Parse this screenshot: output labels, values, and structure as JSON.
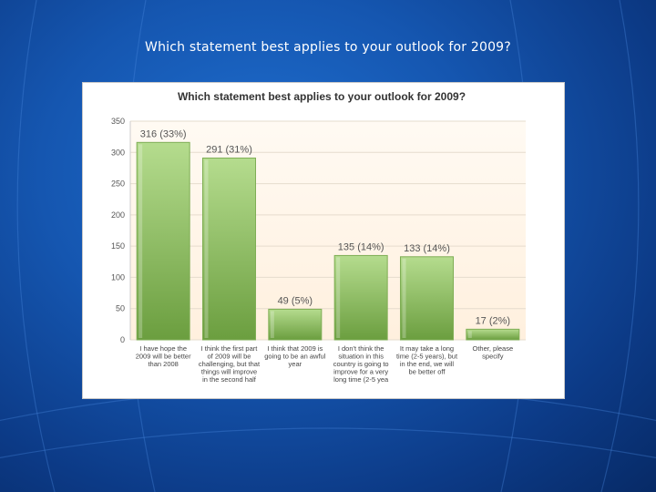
{
  "slide": {
    "title": "Which statement best applies to your outlook for 2009?"
  },
  "colors": {
    "background": "#1556b0",
    "bar_top": "#b5dc8e",
    "bar_bottom": "#6b9e3f",
    "plot_bg": "#fff6ea"
  },
  "chart_data": {
    "type": "bar",
    "title": "Which statement best applies to your outlook for 2009?",
    "xlabel": "",
    "ylabel": "",
    "ylim": [
      0,
      350
    ],
    "yticks": [
      0,
      50,
      100,
      150,
      200,
      250,
      300,
      350
    ],
    "grid": true,
    "legend": "none",
    "categories": [
      [
        "I have hope the",
        "2009 will be better",
        "than 2008"
      ],
      [
        "I think the first part",
        "of 2009 will be",
        "challenging, but that",
        "things will improve",
        "in the second half"
      ],
      [
        "I think that 2009 is",
        "going to be an awful",
        "year"
      ],
      [
        "I don't think the",
        "situation in this",
        "country is going to",
        "improve for a very",
        "long time (2-5 yea"
      ],
      [
        "It may take a long",
        "time (2-5 years), but",
        "in the end, we will",
        "be better off"
      ],
      [
        "Other, please",
        "specify"
      ]
    ],
    "values": [
      316,
      291,
      49,
      135,
      133,
      17
    ],
    "data_labels": [
      "316 (33%)",
      "291 (31%)",
      "49 (5%)",
      "135 (14%)",
      "133 (14%)",
      "17 (2%)"
    ]
  }
}
